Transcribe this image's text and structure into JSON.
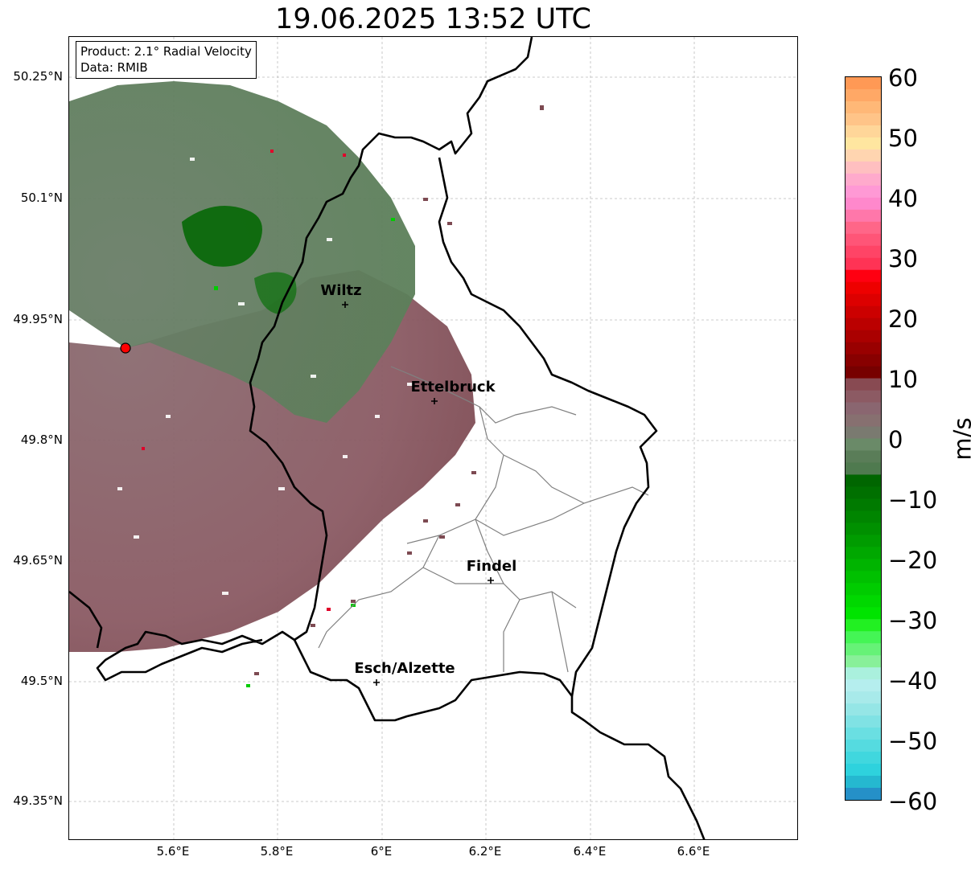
{
  "title": "19.06.2025 13:52 UTC",
  "info_box": {
    "product": "Product: 2.1° Radial Velocity",
    "data": "Data: RMIB"
  },
  "lat_ticks": [
    "50.25°N",
    "50.1°N",
    "49.95°N",
    "49.8°N",
    "49.65°N",
    "49.5°N",
    "49.35°N"
  ],
  "lon_ticks": [
    "5.6°E",
    "5.8°E",
    "6°E",
    "6.2°E",
    "6.4°E",
    "6.6°E"
  ],
  "cities": [
    {
      "name": "Wiltz"
    },
    {
      "name": "Ettelbruck"
    },
    {
      "name": "Findel"
    },
    {
      "name": "Esch/Alzette"
    }
  ],
  "colorbar": {
    "unit": "m/s",
    "ticks": [
      "60",
      "50",
      "40",
      "30",
      "20",
      "10",
      "0",
      "−10",
      "−20",
      "−30",
      "−40",
      "−50",
      "−60"
    ],
    "range": [
      -60,
      60
    ]
  },
  "colors": {
    "inbound_light": "#5c7f5a",
    "inbound_dark": "#006600",
    "outbound": "#8a5a63",
    "radar_marker": "#ff0000",
    "border": "#000000",
    "canton": "#808080"
  }
}
